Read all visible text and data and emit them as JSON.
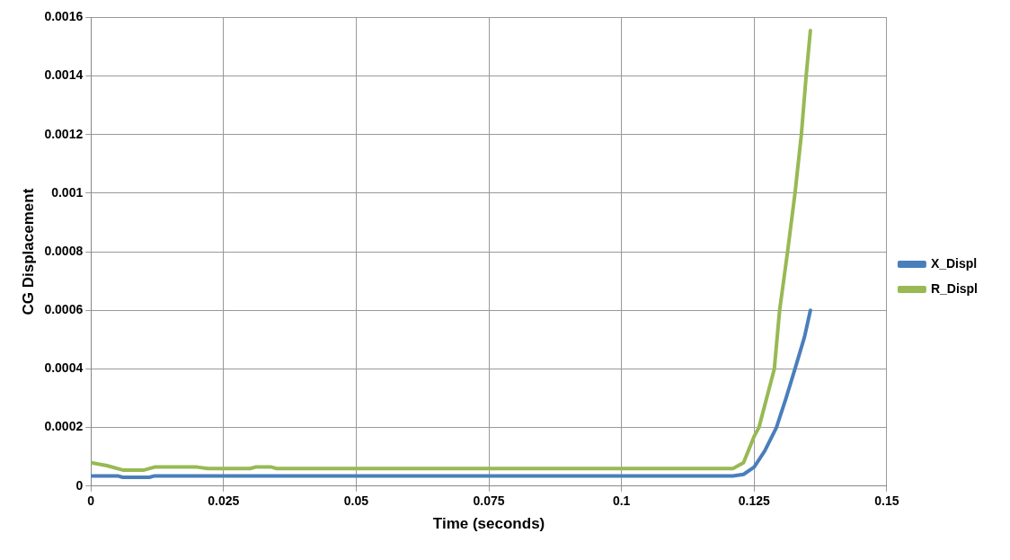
{
  "chart_data": {
    "type": "line",
    "xlabel": "Time (seconds)",
    "ylabel": "CG Displacement",
    "xlim": [
      0,
      0.15
    ],
    "xticks": [
      0,
      0.025,
      0.05,
      0.075,
      0.1,
      0.125,
      0.15
    ],
    "ylim": [
      0,
      0.0016
    ],
    "yticks": [
      0,
      0.0002,
      0.0004,
      0.0006,
      0.0008,
      0.001,
      0.0012,
      0.0014,
      0.0016
    ],
    "grid": true,
    "legend": "right",
    "marker": "none",
    "line_style": "solid",
    "series": [
      {
        "name": "X_Displ",
        "color": "#4a7ebb",
        "x": [
          0,
          0.005,
          0.006,
          0.011,
          0.012,
          0.05,
          0.1,
          0.121,
          0.123,
          0.125,
          0.127,
          0.1292,
          0.131,
          0.1327,
          0.1345,
          0.1356
        ],
        "values": [
          3.5e-05,
          3.5e-05,
          3e-05,
          3e-05,
          3.5e-05,
          3.5e-05,
          3.5e-05,
          3.5e-05,
          4e-05,
          6.5e-05,
          0.00012,
          0.0002,
          0.0003,
          0.0004,
          0.00051,
          0.0006
        ]
      },
      {
        "name": "R_Displ",
        "color": "#98b954",
        "x": [
          0,
          0.003,
          0.006,
          0.01,
          0.012,
          0.02,
          0.022,
          0.03,
          0.031,
          0.034,
          0.035,
          0.05,
          0.1,
          0.121,
          0.123,
          0.125,
          0.1259,
          0.1288,
          0.1298,
          0.1313,
          0.1327,
          0.1339,
          0.1348,
          0.1356
        ],
        "values": [
          8e-05,
          7e-05,
          5.5e-05,
          5.5e-05,
          6.5e-05,
          6.5e-05,
          6e-05,
          6e-05,
          6.5e-05,
          6.5e-05,
          6e-05,
          6e-05,
          6e-05,
          6e-05,
          8e-05,
          0.00017,
          0.0002,
          0.0004,
          0.0006,
          0.0008,
          0.001,
          0.0012,
          0.0014,
          0.001555
        ]
      }
    ]
  }
}
